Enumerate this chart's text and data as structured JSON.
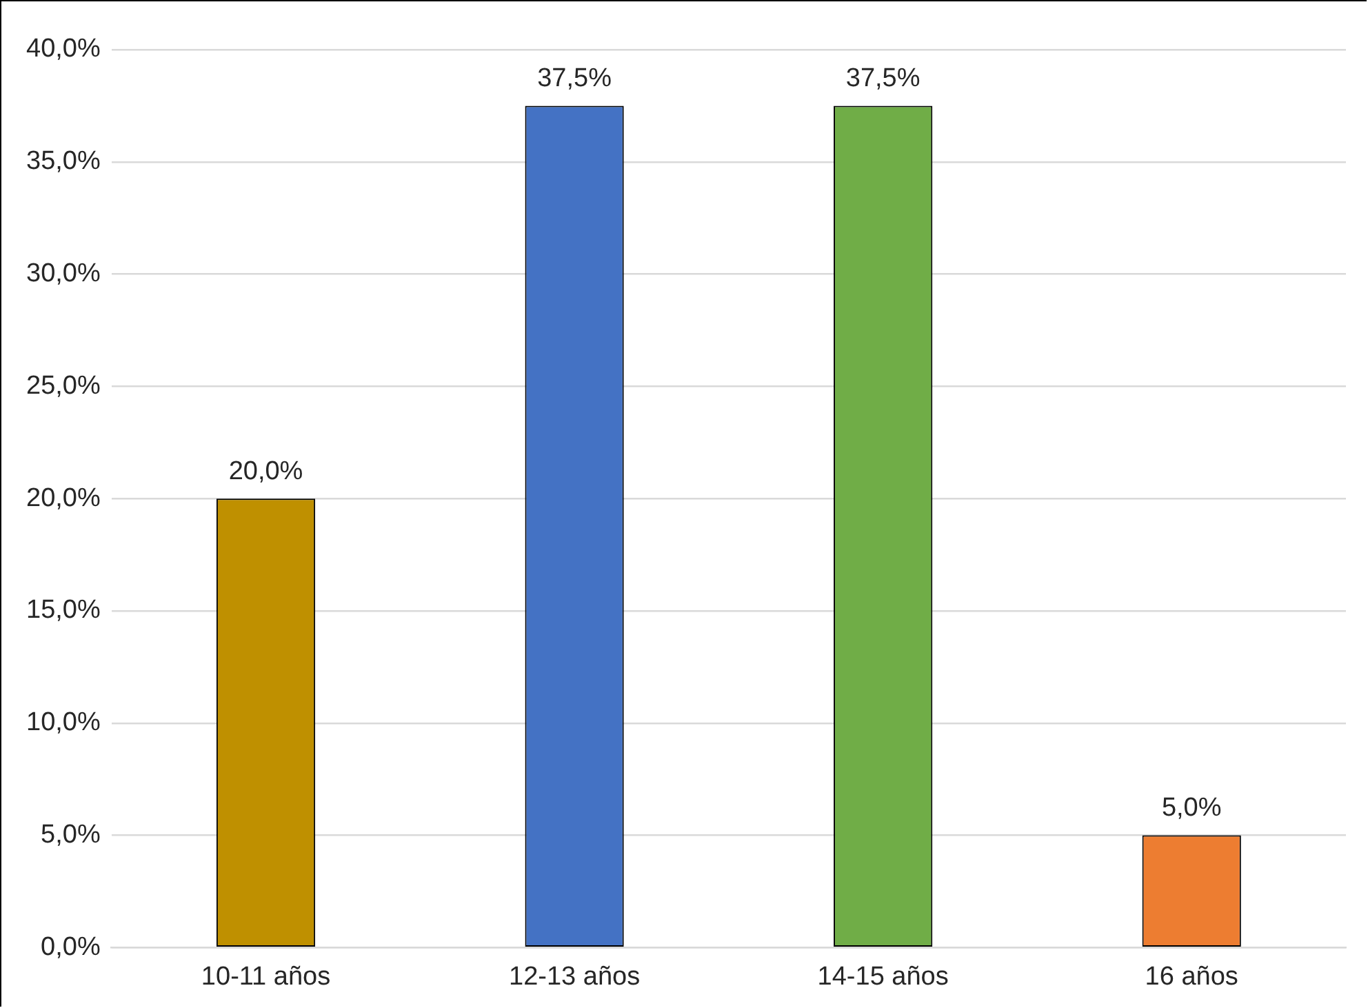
{
  "chart_data": {
    "type": "bar",
    "categories": [
      "10-11 años",
      "12-13 años",
      "14-15 años",
      "16 años"
    ],
    "values": [
      20,
      37.5,
      37.5,
      5
    ],
    "colors": [
      "#bf9000",
      "#4472c4",
      "#70ad47",
      "#ed7d31"
    ],
    "value_labels": [
      "20,0%",
      "37,5%",
      "37,5%",
      "5,0%"
    ],
    "ylim": [
      0,
      40
    ],
    "yticks": [
      {
        "value": 0,
        "label": "0,0%"
      },
      {
        "value": 5,
        "label": "5,0%"
      },
      {
        "value": 10,
        "label": "10,0%"
      },
      {
        "value": 15,
        "label": "15,0%"
      },
      {
        "value": 20,
        "label": "20,0%"
      },
      {
        "value": 25,
        "label": "25,0%"
      },
      {
        "value": 30,
        "label": "30,0%"
      },
      {
        "value": 35,
        "label": "35,0%"
      },
      {
        "value": 40,
        "label": "40,0%"
      }
    ],
    "grid": "y",
    "legend": false
  }
}
